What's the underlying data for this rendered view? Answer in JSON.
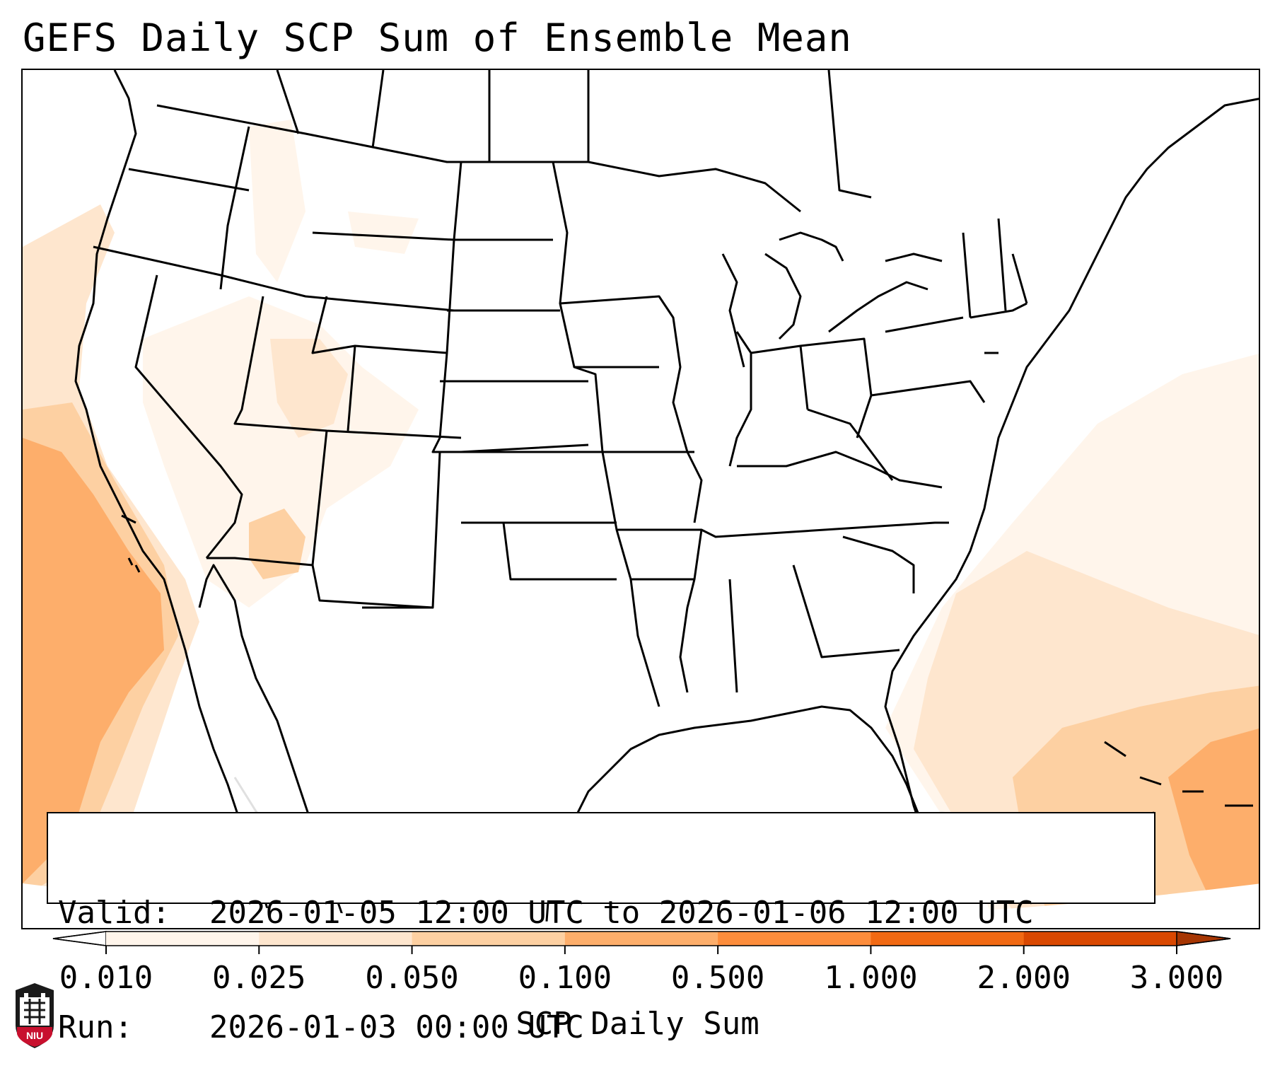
{
  "title": "GEFS Daily SCP Sum of Ensemble Mean",
  "info": {
    "valid_label": "Valid:",
    "valid_text": "2026-01-05 12:00 UTC to 2026-01-06 12:00 UTC",
    "run_label": "Run:",
    "run_text": "2026-01-03 00:00 UTC"
  },
  "colorbar": {
    "label": "SCP Daily Sum",
    "levels": [
      "0.010",
      "0.025",
      "0.050",
      "0.100",
      "0.500",
      "1.000",
      "2.000",
      "3.000"
    ],
    "colors": [
      "#fff5eb",
      "#fee6ce",
      "#fdd0a2",
      "#fdae6b",
      "#fd8d3c",
      "#f16913",
      "#d94801"
    ],
    "under_color": "#ffffff",
    "over_color": "#a63603",
    "extend": "both"
  },
  "logo": {
    "name": "NIU",
    "text": "NIU"
  },
  "colors": {
    "frame": "#000000",
    "background": "#ffffff"
  }
}
